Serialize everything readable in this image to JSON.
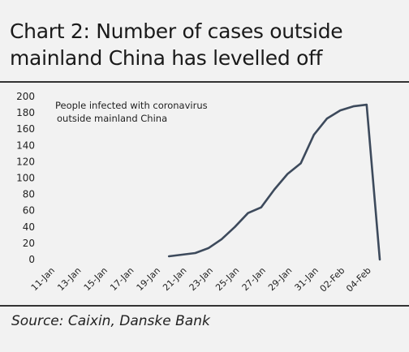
{
  "title": "Chart 2: Number of cases outside mainland China has levelled off",
  "source": "Source: Caixin, Danske Bank",
  "colors": {
    "background": "#f2f2f2",
    "line": "#3d4a5c",
    "rule": "#333333",
    "text": "#222222"
  },
  "chart_data": {
    "type": "line",
    "title": "",
    "xlabel": "",
    "ylabel": "",
    "ylim": [
      0,
      200
    ],
    "yticks": [
      0,
      20,
      40,
      60,
      80,
      100,
      120,
      140,
      160,
      180,
      200
    ],
    "grid": false,
    "legend_placement": "top-left",
    "x_tick_labels": [
      "11-Jan",
      "13-Jan",
      "15-Jan",
      "17-Jan",
      "19-Jan",
      "21-Jan",
      "23-Jan",
      "25-Jan",
      "27-Jan",
      "29-Jan",
      "31-Jan",
      "02-Feb",
      "04-Feb"
    ],
    "annotation": [
      "People infected  with coronavirus",
      "outside mainland China"
    ],
    "x": [
      "20-Jan",
      "21-Jan",
      "22-Jan",
      "23-Jan",
      "24-Jan",
      "25-Jan",
      "26-Jan",
      "27-Jan",
      "28-Jan",
      "29-Jan",
      "30-Jan",
      "31-Jan",
      "01-Feb",
      "02-Feb",
      "03-Feb",
      "04-Feb",
      "05-Feb"
    ],
    "series": [
      {
        "name": "People infected  with coronavirus outside mainland China",
        "values": [
          4,
          6,
          8,
          14,
          25,
          40,
          57,
          64,
          86,
          105,
          118,
          153,
          173,
          183,
          188,
          190,
          0
        ]
      }
    ]
  }
}
